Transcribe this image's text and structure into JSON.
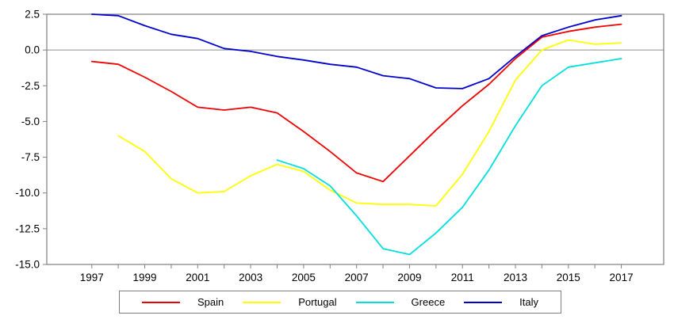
{
  "chart_data": {
    "type": "line",
    "title": "",
    "xlabel": "",
    "ylabel": "",
    "x": [
      1997,
      1998,
      1999,
      2000,
      2001,
      2002,
      2003,
      2004,
      2005,
      2006,
      2007,
      2008,
      2009,
      2010,
      2011,
      2012,
      2013,
      2014,
      2015,
      2016,
      2017
    ],
    "x_tick_years": [
      1997,
      1998,
      1999,
      2000,
      2001,
      2002,
      2003,
      2004,
      2005,
      2006,
      2007,
      2008,
      2009,
      2010,
      2011,
      2012,
      2013,
      2014,
      2015,
      2016,
      2017
    ],
    "x_tick_labels": [
      "1997",
      "1999",
      "2001",
      "2003",
      "2005",
      "2007",
      "2009",
      "2011",
      "2013",
      "2015",
      "2017"
    ],
    "x_label_years": [
      1997,
      1999,
      2001,
      2003,
      2005,
      2007,
      2009,
      2011,
      2013,
      2015,
      2017
    ],
    "y_ticks": [
      2.5,
      0.0,
      -2.5,
      -5.0,
      -7.5,
      -10.0,
      -12.5,
      -15.0
    ],
    "y_tick_labels": [
      "2.5",
      "0.0",
      "-2.5",
      "-5.0",
      "-7.5",
      "-10.0",
      "-12.5",
      "-15.0"
    ],
    "xlim": [
      1995.3,
      2018.6
    ],
    "ylim": [
      -15.0,
      2.5
    ],
    "grid": "horizontal zero line only",
    "zero_line_color": "#8c8c8c",
    "frame_color": "#7f7f7f",
    "legend_position": "bottom-center",
    "series": [
      {
        "name": "Spain",
        "color": "#ee0000",
        "values": [
          -0.8,
          -1.0,
          -1.9,
          -2.9,
          -4.0,
          -4.2,
          -4.0,
          -4.4,
          -5.7,
          -7.1,
          -8.6,
          -9.2,
          -7.4,
          -5.6,
          -3.9,
          -2.4,
          -0.6,
          0.9,
          1.3,
          1.6,
          1.8
        ]
      },
      {
        "name": "Portugal",
        "color": "#ffff00",
        "values": [
          null,
          -6.0,
          -7.1,
          -9.0,
          -10.0,
          -9.9,
          -8.8,
          -8.0,
          -8.5,
          -9.8,
          -10.7,
          -10.8,
          -10.8,
          -10.9,
          -8.7,
          -5.7,
          -2.1,
          0.0,
          0.7,
          0.4,
          0.5
        ]
      },
      {
        "name": "Greece",
        "color": "#00dddd",
        "values": [
          null,
          null,
          null,
          null,
          null,
          null,
          null,
          -7.7,
          -8.3,
          -9.5,
          -11.6,
          -13.9,
          -14.3,
          -12.8,
          -11.0,
          -8.4,
          -5.3,
          -2.5,
          -1.2,
          -0.9,
          -0.6
        ]
      },
      {
        "name": "Italy",
        "color": "#0000cd",
        "values": [
          2.5,
          2.4,
          1.7,
          1.1,
          0.8,
          0.1,
          -0.1,
          -0.45,
          -0.7,
          -1.0,
          -1.2,
          -1.8,
          -2.0,
          -2.65,
          -2.7,
          -2.0,
          -0.45,
          1.0,
          1.6,
          2.1,
          2.4
        ]
      }
    ]
  }
}
